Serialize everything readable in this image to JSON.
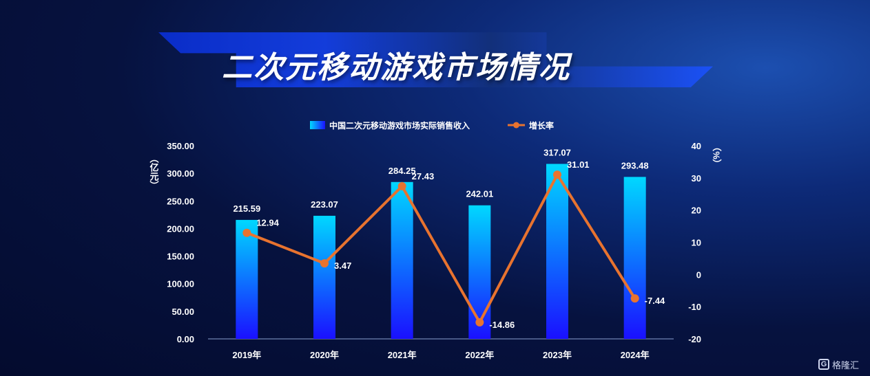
{
  "page": {
    "title": "二次元移动游戏市场情况"
  },
  "watermark": {
    "text": "格隆汇",
    "icon": "G"
  },
  "chart_data": {
    "type": "bar",
    "title": "二次元移动游戏市场情况",
    "categories": [
      "2019年",
      "2020年",
      "2021年",
      "2022年",
      "2023年",
      "2024年"
    ],
    "series": [
      {
        "name": "中国二次元移动游戏市场实际销售收入",
        "kind": "bar",
        "axis": "left",
        "values": [
          215.59,
          223.07,
          284.25,
          242.01,
          317.07,
          293.48
        ],
        "labels": [
          "215.59",
          "223.07",
          "284.25",
          "242.01",
          "317.07",
          "293.48"
        ]
      },
      {
        "name": "增长率",
        "kind": "line",
        "axis": "right",
        "values": [
          12.94,
          3.47,
          27.43,
          -14.86,
          31.01,
          -7.44
        ],
        "labels": [
          "12.94",
          "3.47",
          "27.43",
          "-14.86",
          "31.01",
          "-7.44"
        ]
      }
    ],
    "y_left": {
      "label": "（亿元）",
      "ylim": [
        0,
        350
      ],
      "ticks": [
        "0.00",
        "50.00",
        "100.00",
        "150.00",
        "200.00",
        "250.00",
        "300.00",
        "350.00"
      ]
    },
    "y_right": {
      "label": "（%）",
      "ylim": [
        -20,
        40
      ],
      "ticks": [
        "-20",
        "-10",
        "0",
        "10",
        "20",
        "30",
        "40"
      ]
    },
    "legend": {
      "position": "top-center"
    },
    "colors": {
      "bar_top": "#00d8ff",
      "bar_bottom": "#1a10ff",
      "line": "#e8732f",
      "axis": "#8aa0d0"
    }
  }
}
